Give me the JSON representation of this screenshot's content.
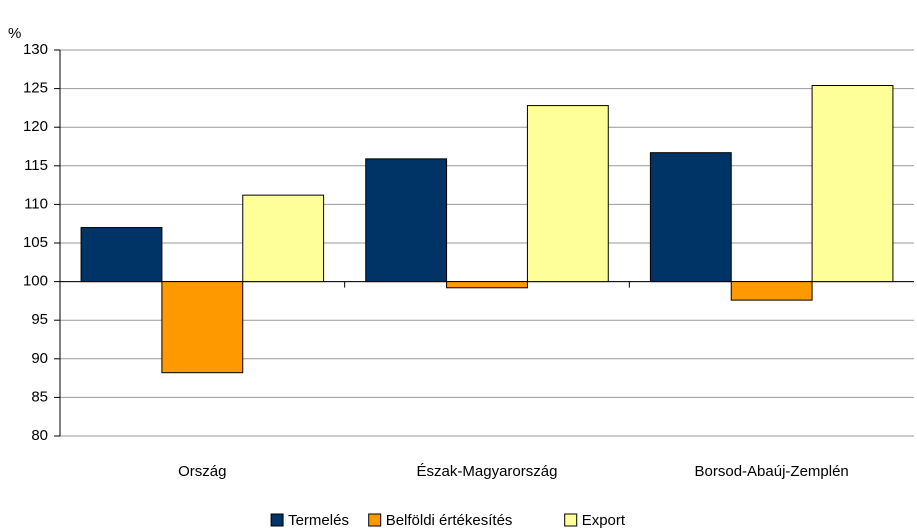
{
  "chart_data": {
    "type": "bar",
    "y_unit": "%",
    "categories": [
      "Ország",
      "Észak-Magyarország",
      "Borsod-Abaúj-Zemplén"
    ],
    "series": [
      {
        "name": "Termelés",
        "color": "#003366",
        "values": [
          107,
          115.9,
          116.7
        ]
      },
      {
        "name": "Belföldi értékesítés",
        "color": "#ff9900",
        "values": [
          88.2,
          99.2,
          97.6
        ]
      },
      {
        "name": "Export",
        "color": "#ffff99",
        "values": [
          111.2,
          122.8,
          125.4
        ]
      }
    ],
    "baseline": 100,
    "ylim": [
      80,
      130
    ],
    "yticks": [
      80,
      85,
      90,
      95,
      100,
      105,
      110,
      115,
      120,
      125,
      130
    ],
    "grid": true,
    "legend": "bottom"
  }
}
